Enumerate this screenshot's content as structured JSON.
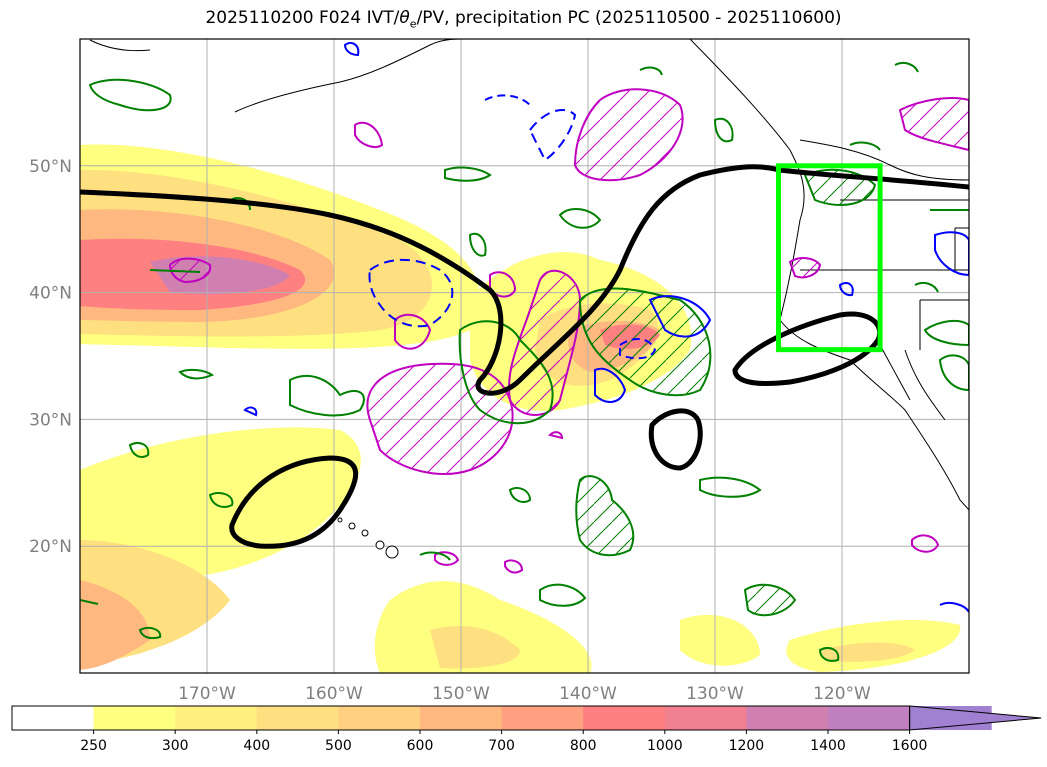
{
  "title": "2025110200 F024 IVT/θe/PV, precipitation PC (2025110500 - 2025110600)",
  "title_parts": {
    "pre": "2025110200 F024 IVT/",
    "theta": "θ",
    "sub": "e",
    "post": "/PV, precipitation PC (2025110500 - 2025110600)"
  },
  "map": {
    "lon_range": [
      -180,
      -110
    ],
    "lat_range": [
      10,
      60
    ],
    "lon_ticks": [
      {
        "value": -170,
        "label": "170°W"
      },
      {
        "value": -160,
        "label": "160°W"
      },
      {
        "value": -150,
        "label": "150°W"
      },
      {
        "value": -140,
        "label": "140°W"
      },
      {
        "value": -130,
        "label": "130°W"
      },
      {
        "value": -120,
        "label": "120°W"
      }
    ],
    "lat_ticks": [
      {
        "value": 50,
        "label": "50°N"
      },
      {
        "value": 40,
        "label": "40°N"
      },
      {
        "value": 30,
        "label": "30°N"
      },
      {
        "value": 20,
        "label": "20°N"
      }
    ],
    "grid": true,
    "highlight_box": {
      "lon": [
        -125,
        -117
      ],
      "lat": [
        35.5,
        50
      ],
      "color": "#00ff00"
    }
  },
  "colorbar": {
    "levels": [
      "250",
      "300",
      "400",
      "500",
      "600",
      "700",
      "800",
      "1000",
      "1200",
      "1400",
      "1600"
    ],
    "colors": [
      "#ffffff",
      "#ffff80",
      "#fff080",
      "#ffe080",
      "#ffd080",
      "#ffb880",
      "#ffa080",
      "#ff8080",
      "#f08090",
      "#d080b0",
      "#c080c0",
      "#a080d0"
    ],
    "extend": "max"
  },
  "contour_colors": {
    "theta_e": "#000000",
    "pv_positive": "#008000",
    "pv_negative": "#0000ff",
    "precip": "#c000c0"
  }
}
